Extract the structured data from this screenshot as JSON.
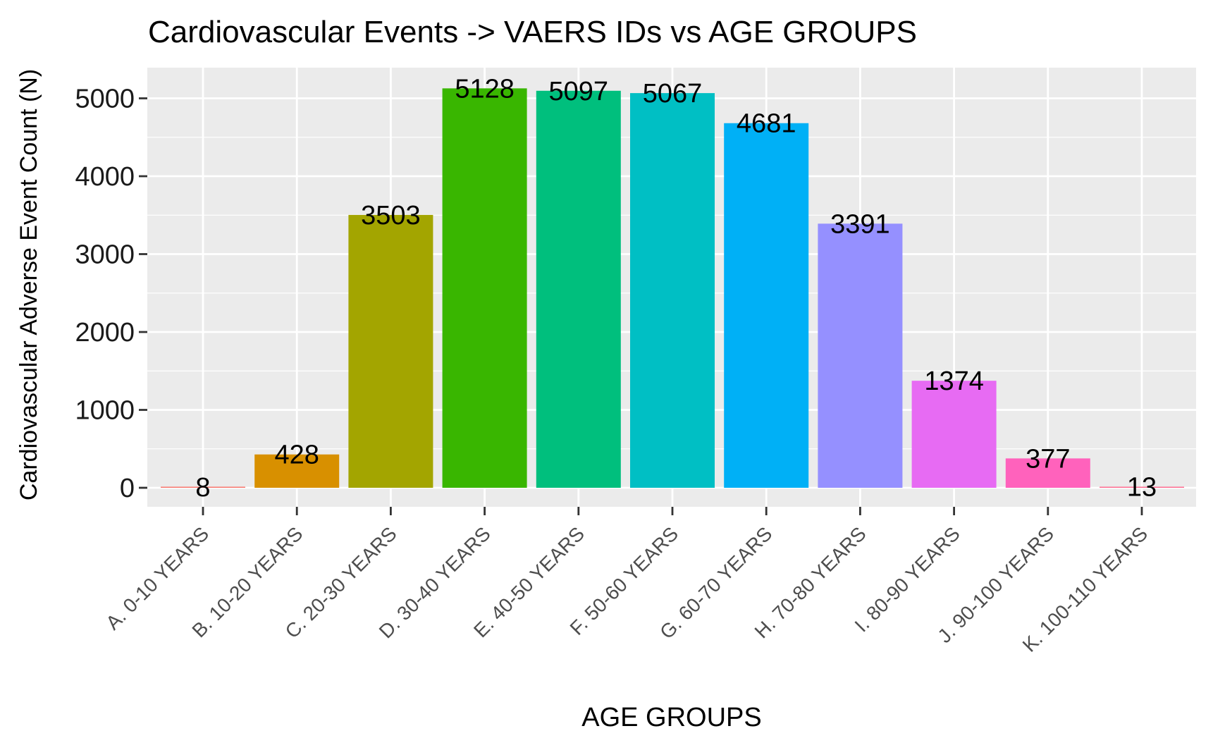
{
  "chart_data": {
    "type": "bar",
    "title": "Cardiovascular Events -> VAERS IDs vs AGE GROUPS",
    "xlabel": "AGE GROUPS",
    "ylabel": "Cardiovascular Adverse Event Count (N)",
    "ylim": [
      0,
      5400
    ],
    "yticks": [
      0,
      1000,
      2000,
      3000,
      4000,
      5000
    ],
    "ytick_labels": [
      "0",
      "1000",
      "2000",
      "3000",
      "4000",
      "5000"
    ],
    "grid": true,
    "legend": "none",
    "categories": [
      "A. 0-10 YEARS",
      "B. 10-20 YEARS",
      "C. 20-30 YEARS",
      "D. 30-40 YEARS",
      "E. 40-50 YEARS",
      "F. 50-60 YEARS",
      "G. 60-70 YEARS",
      "H. 70-80 YEARS",
      "I. 80-90 YEARS",
      "J. 90-100 YEARS",
      "K. 100-110 YEARS"
    ],
    "values": [
      8,
      428,
      3503,
      5128,
      5097,
      5067,
      4681,
      3391,
      1374,
      377,
      13
    ],
    "colors": [
      "#F8766D",
      "#D89000",
      "#A3A500",
      "#39B600",
      "#00BF7D",
      "#00BFC4",
      "#00B0F6",
      "#9590FF",
      "#E76BF3",
      "#FF62BC",
      "#FF6C91"
    ]
  }
}
